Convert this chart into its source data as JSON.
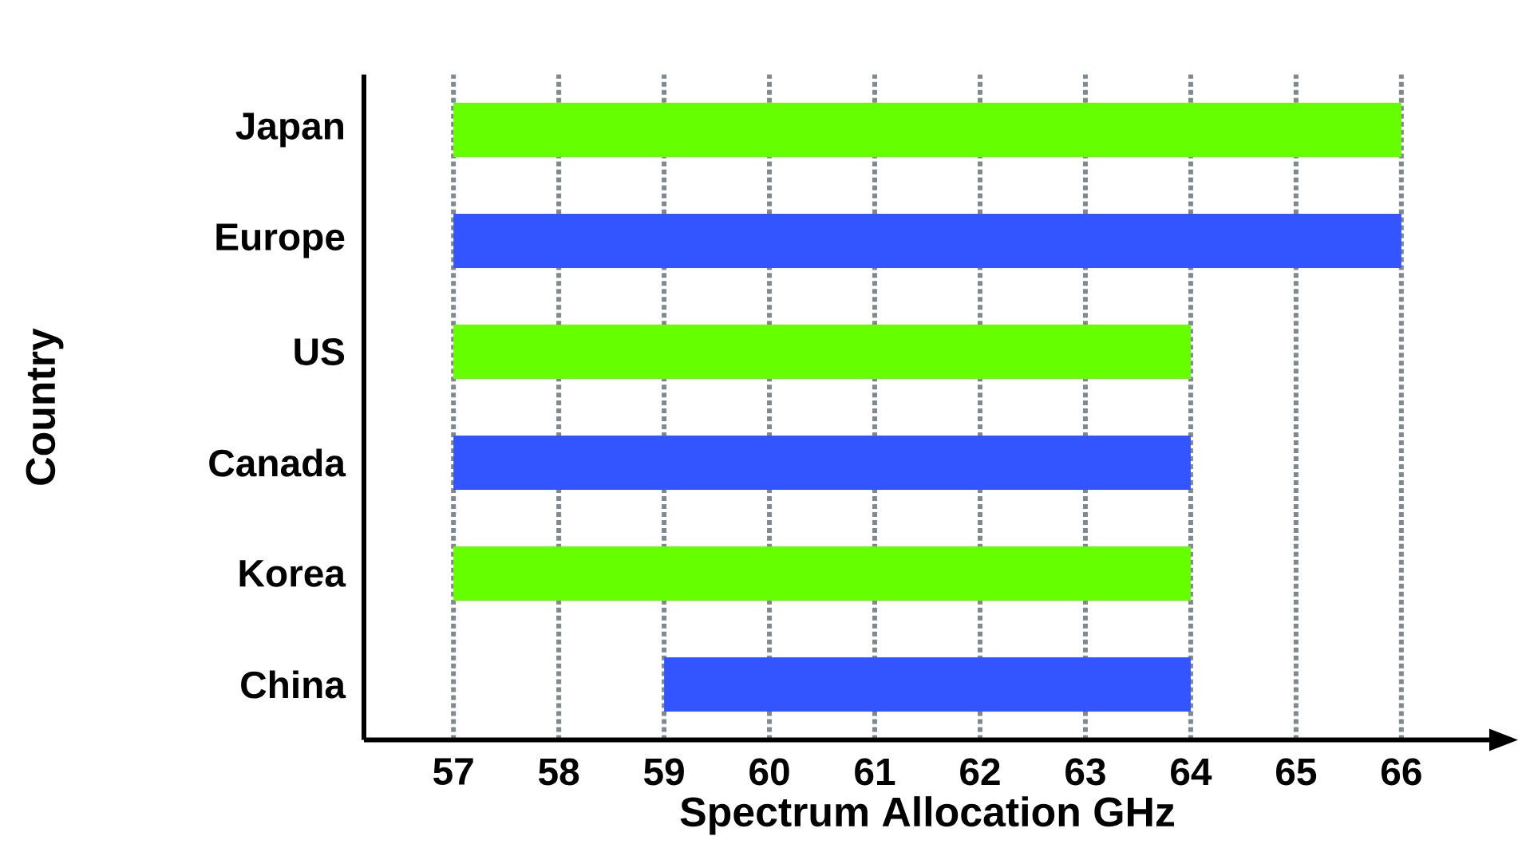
{
  "chart_data": {
    "type": "bar",
    "orientation": "horizontal",
    "categories": [
      "Japan",
      "Europe",
      "US",
      "Canada",
      "Korea",
      "China"
    ],
    "base": [
      57,
      57,
      57,
      57,
      57,
      59
    ],
    "values": [
      9,
      9,
      7,
      7,
      7,
      5
    ],
    "colors": [
      "#66ff00",
      "#3355ff",
      "#66ff00",
      "#3355ff",
      "#66ff00",
      "#3355ff"
    ],
    "xlim": [
      56.15,
      66.85
    ],
    "xticks": [
      57,
      58,
      59,
      60,
      61,
      62,
      63,
      64,
      65,
      66
    ],
    "xlabel": "Spectrum Allocation GHz",
    "ylabel": "Country",
    "grid": "x"
  }
}
